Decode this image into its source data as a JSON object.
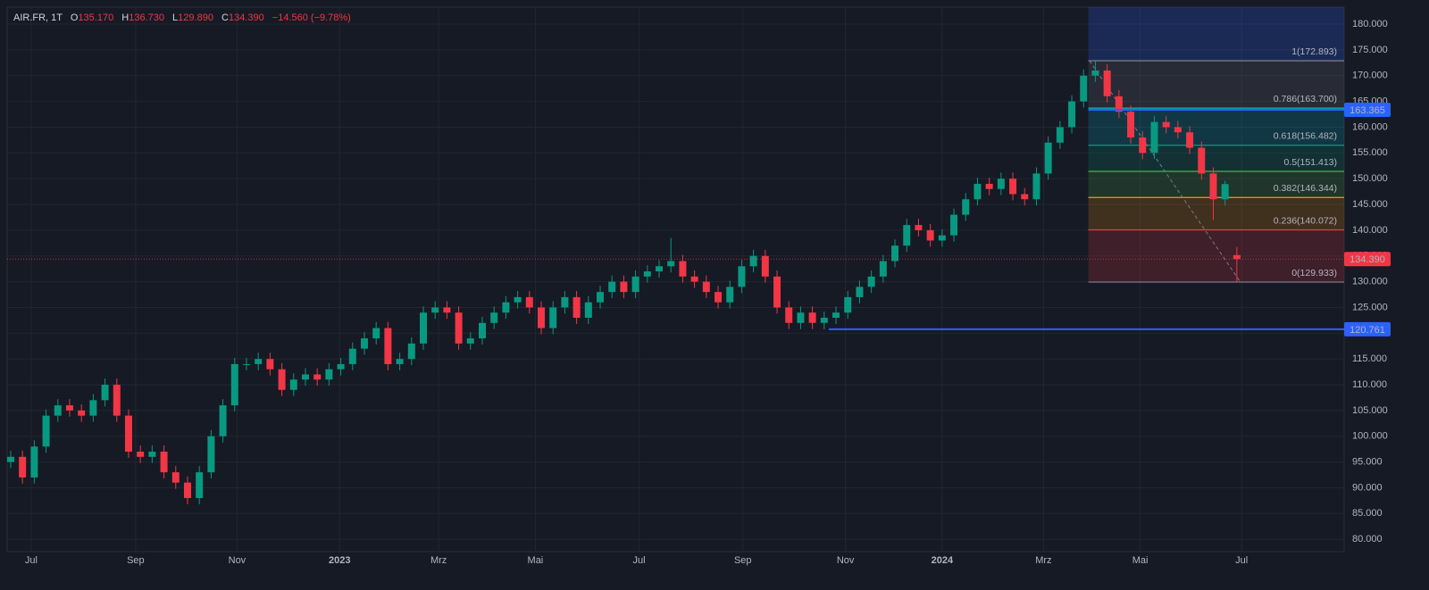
{
  "header": {
    "symbol": "AIR.FR, 1T",
    "ohlc": [
      {
        "key": "O",
        "value": "135.170"
      },
      {
        "key": "H",
        "value": "136.730"
      },
      {
        "key": "L",
        "value": "129.890"
      },
      {
        "key": "C",
        "value": "134.390"
      }
    ],
    "change": "−14.560 (−9.78%)"
  },
  "chart_data": {
    "type": "candlestick",
    "grid": true,
    "up_color": "#089981",
    "down_color": "#f23645",
    "xlim": [
      -0.3,
      113.1
    ],
    "xticks": [
      {
        "value": 1.74,
        "label": "Jul"
      },
      {
        "value": 10.6,
        "label": "Sep"
      },
      {
        "value": 19.2,
        "label": "Nov"
      },
      {
        "value": 27.9,
        "label": "2023"
      },
      {
        "value": 36.3,
        "label": "Mrz"
      },
      {
        "value": 44.5,
        "label": "Mai"
      },
      {
        "value": 53.3,
        "label": "Jul"
      },
      {
        "value": 62.1,
        "label": "Sep"
      },
      {
        "value": 70.8,
        "label": "Nov"
      },
      {
        "value": 79.0,
        "label": "2024"
      },
      {
        "value": 87.6,
        "label": "Mrz"
      },
      {
        "value": 95.8,
        "label": "Mai"
      },
      {
        "value": 104.4,
        "label": "Jul"
      }
    ],
    "ylim": [
      77.6,
      183.3
    ],
    "yticks": [
      {
        "value": 80,
        "label": "80.000"
      },
      {
        "value": 85,
        "label": "85.000"
      },
      {
        "value": 90,
        "label": "90.000"
      },
      {
        "value": 95,
        "label": "95.000"
      },
      {
        "value": 100,
        "label": "100.000"
      },
      {
        "value": 105,
        "label": "105.000"
      },
      {
        "value": 110,
        "label": "110.000"
      },
      {
        "value": 115,
        "label": "115.000"
      },
      {
        "value": 120,
        "label": "120.000"
      },
      {
        "value": 125,
        "label": "125.000"
      },
      {
        "value": 130,
        "label": "130.000"
      },
      {
        "value": 135,
        "label": "135.000"
      },
      {
        "value": 140,
        "label": "140.000"
      },
      {
        "value": 145,
        "label": "145.000"
      },
      {
        "value": 150,
        "label": "150.000"
      },
      {
        "value": 155,
        "label": "155.000"
      },
      {
        "value": 160,
        "label": "160.000"
      },
      {
        "value": 165,
        "label": "165.000"
      },
      {
        "value": 170,
        "label": "170.000"
      },
      {
        "value": 175,
        "label": "175.000"
      },
      {
        "value": 180,
        "label": "180.000"
      }
    ],
    "series": [
      {
        "name": "AIR.FR",
        "open": [
          95,
          96,
          92,
          98,
          104,
          106,
          105,
          104,
          107,
          110,
          104,
          97,
          96,
          97,
          93,
          91,
          88,
          93,
          100,
          106,
          114,
          114,
          115,
          113,
          109,
          111,
          112,
          111,
          113,
          114,
          117,
          119,
          121,
          114,
          115,
          118,
          124,
          125,
          124,
          118,
          119,
          122,
          124,
          126,
          127,
          125,
          121,
          125,
          127,
          123,
          126,
          128,
          130,
          128,
          131,
          132,
          133,
          134,
          131,
          130,
          128,
          126,
          129,
          133,
          135,
          131,
          125,
          122,
          124,
          122,
          123,
          124,
          127,
          129,
          131,
          134,
          137,
          141,
          140,
          138,
          139,
          143,
          146,
          149,
          148,
          150,
          147,
          146,
          151,
          157,
          160,
          165,
          170,
          171,
          166,
          163,
          158,
          155,
          161,
          160,
          159,
          156,
          151,
          146,
          135.17
        ],
        "high": [
          97.2,
          97.2,
          99.2,
          105.2,
          107.2,
          107.2,
          106.2,
          108.2,
          111.2,
          111.2,
          105.2,
          98.2,
          98.2,
          98.2,
          94.2,
          92.2,
          94.2,
          101.2,
          107.2,
          115.2,
          115.2,
          116.2,
          116.2,
          114.2,
          112.2,
          113.2,
          113.2,
          114.2,
          115.2,
          118.2,
          120.2,
          122.2,
          122.2,
          116.2,
          119.2,
          125.2,
          126.2,
          126.2,
          125.2,
          120.2,
          123.2,
          125.2,
          127.2,
          128.2,
          128.2,
          126.2,
          126.2,
          128.2,
          128.2,
          127.2,
          129.2,
          131.2,
          131.2,
          132.2,
          133.2,
          134.2,
          138.5,
          135.2,
          132.2,
          131.2,
          129.2,
          130.2,
          134.2,
          136.2,
          136.2,
          132.2,
          126.2,
          125.2,
          125.2,
          124.2,
          125.2,
          128.2,
          130.2,
          132.2,
          135.2,
          138.2,
          142.2,
          142.2,
          141.2,
          140.2,
          144.2,
          147.2,
          150.2,
          150.2,
          151.2,
          151.2,
          148.2,
          152.2,
          158.2,
          161.2,
          166.2,
          171.2,
          172.89,
          172.2,
          167.2,
          164.2,
          159.2,
          162.2,
          162.2,
          161.2,
          160.2,
          157.2,
          152.2,
          149.6,
          136.73
        ],
        "low": [
          93.8,
          90.8,
          90.8,
          96.8,
          102.8,
          103.8,
          102.8,
          102.8,
          105.8,
          102.8,
          95.8,
          94.8,
          94.8,
          91.8,
          89.8,
          86.8,
          86.8,
          91.8,
          98.8,
          104.8,
          112.8,
          112.8,
          111.8,
          107.8,
          107.8,
          109.8,
          109.8,
          109.8,
          111.8,
          112.8,
          115.8,
          117.8,
          112.8,
          112.8,
          113.8,
          116.8,
          122.8,
          122.8,
          116.8,
          116.8,
          117.8,
          120.8,
          122.8,
          124.8,
          123.8,
          119.8,
          119.8,
          123.8,
          121.8,
          121.8,
          124.8,
          126.8,
          126.8,
          126.8,
          129.8,
          130.8,
          131.8,
          129.8,
          128.8,
          126.8,
          124.8,
          124.8,
          127.8,
          131.8,
          129.8,
          123.8,
          120.8,
          120.8,
          120.8,
          120.76,
          121.8,
          122.8,
          125.8,
          127.8,
          129.8,
          132.8,
          135.8,
          138.8,
          136.8,
          136.8,
          137.8,
          141.8,
          144.8,
          146.8,
          146.8,
          145.8,
          144.8,
          144.8,
          149.8,
          155.8,
          158.8,
          163.8,
          168.8,
          164.8,
          161.8,
          156.8,
          153.8,
          153.8,
          158.8,
          157.8,
          154.8,
          149.8,
          142,
          144.8,
          129.89
        ],
        "close": [
          96,
          92,
          98,
          104,
          106,
          105,
          104,
          107,
          110,
          104,
          97,
          96,
          97,
          93,
          91,
          88,
          93,
          100,
          106,
          114,
          114,
          115,
          113,
          109,
          111,
          112,
          111,
          113,
          114,
          117,
          119,
          121,
          114,
          115,
          118,
          124,
          125,
          124,
          118,
          119,
          122,
          124,
          126,
          127,
          125,
          121,
          125,
          127,
          123,
          126,
          128,
          130,
          128,
          131,
          132,
          133,
          134,
          131,
          130,
          128,
          126,
          129,
          133,
          135,
          131,
          125,
          122,
          124,
          122,
          123,
          124,
          127,
          129,
          131,
          134,
          137,
          141,
          140,
          138,
          139,
          143,
          146,
          149,
          148,
          150,
          147,
          146,
          151,
          157,
          160,
          165,
          170,
          171,
          166,
          163,
          158,
          155,
          161,
          160,
          159,
          156,
          151,
          146,
          148.95,
          134.39
        ]
      }
    ],
    "fib": {
      "x0": 91.4,
      "top_color": "#2962ff",
      "trend": {
        "x": [
          91.5,
          104.3
        ],
        "y": [
          172.893,
          129.933
        ]
      },
      "levels": [
        {
          "value": 172.893,
          "label": "1(172.893)",
          "color": "#787b86"
        },
        {
          "value": 163.7,
          "label": "0.786(163.700)",
          "color": "#00bcd4"
        },
        {
          "value": 156.482,
          "label": "0.618(156.482)",
          "color": "#089981"
        },
        {
          "value": 151.413,
          "label": "0.5(151.413)",
          "color": "#4caf50"
        },
        {
          "value": 146.344,
          "label": "0.382(146.344)",
          "color": "#ff9800"
        },
        {
          "value": 140.072,
          "label": "0.236(140.072)",
          "color": "#f23645"
        },
        {
          "value": 129.933,
          "label": "0(129.933)",
          "color": "#787b86"
        }
      ]
    },
    "hlines": [
      {
        "value": 163.365,
        "label": "163.365",
        "color": "#2962ff",
        "x0": 91.4
      },
      {
        "value": 120.761,
        "label": "120.761",
        "color": "#2962ff",
        "x0": 69.4
      }
    ],
    "last_price": {
      "value": 134.39,
      "label": "134.390",
      "color": "#f23645"
    }
  }
}
